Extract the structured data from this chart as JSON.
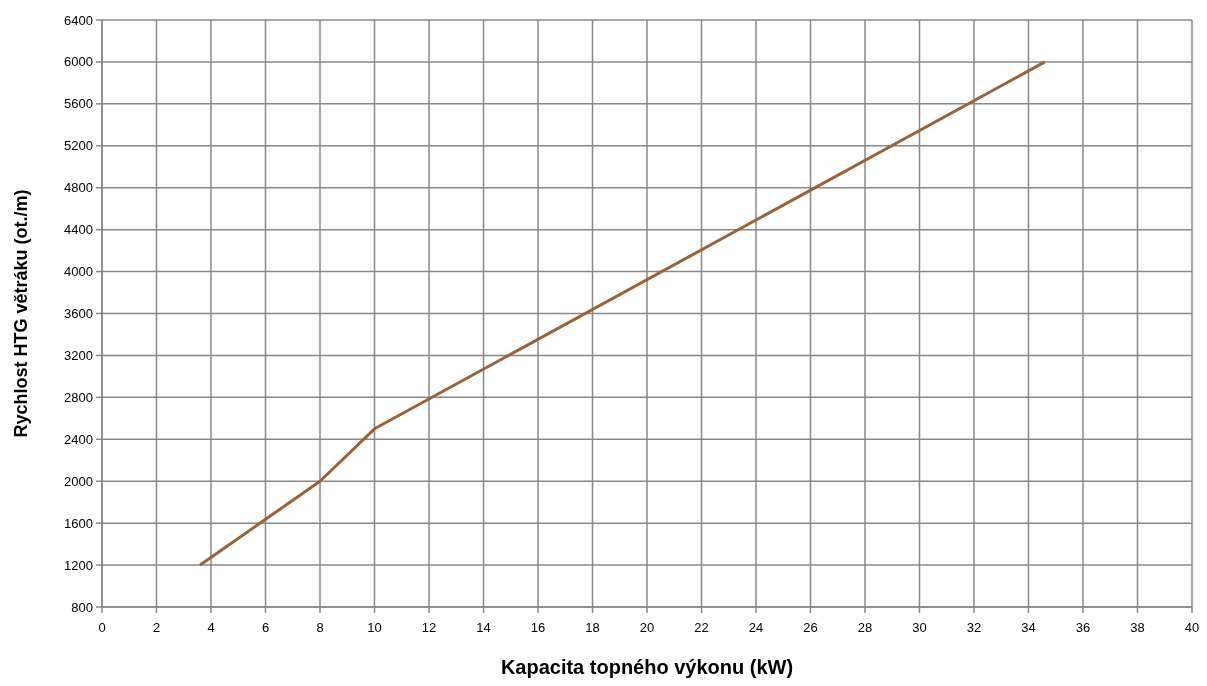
{
  "chart_data": {
    "type": "line",
    "xlabel": "Kapacita topného výkonu (kW)",
    "ylabel": "Rychlost HTG větráku (ot./m)",
    "x": [
      3.6,
      8,
      10,
      34.6
    ],
    "series": [
      {
        "color": "#9a6236",
        "values": [
          1200,
          2000,
          2500,
          6000
        ]
      }
    ],
    "xlim": [
      0,
      40
    ],
    "xticks": [
      0,
      2,
      4,
      6,
      8,
      10,
      12,
      14,
      16,
      18,
      20,
      22,
      24,
      26,
      28,
      30,
      32,
      34,
      36,
      38,
      40
    ],
    "ylim": [
      800,
      6400
    ],
    "yticks": [
      800,
      1200,
      1600,
      2000,
      2400,
      2800,
      3200,
      3600,
      4000,
      4400,
      4800,
      5200,
      5600,
      6000,
      6400
    ],
    "grid": true,
    "marker": "none",
    "line_style": "solid"
  }
}
